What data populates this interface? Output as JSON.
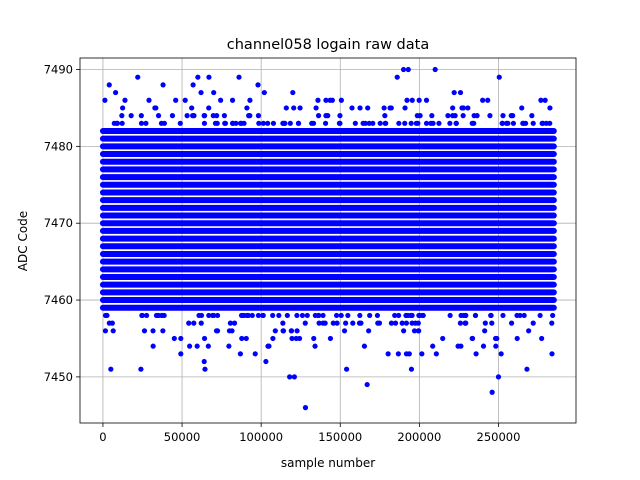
{
  "chart_data": {
    "type": "scatter",
    "title": "channel058 logain raw data",
    "xlabel": "sample number",
    "ylabel": "ADC Code",
    "xlim": [
      -14500,
      299000
    ],
    "ylim": [
      7444,
      7491.5
    ],
    "xticks": [
      0,
      50000,
      100000,
      150000,
      200000,
      250000
    ],
    "xtick_labels": [
      "0",
      "50000",
      "100000",
      "150000",
      "200000",
      "250000"
    ],
    "yticks": [
      7450,
      7460,
      7470,
      7480,
      7490
    ],
    "ytick_labels": [
      "7450",
      "7460",
      "7470",
      "7480",
      "7490"
    ],
    "grid": true,
    "legend": "none",
    "colors": {
      "marker": "#0000ff",
      "grid": "#b0b0b0",
      "axes": "#000000"
    },
    "series": [
      {
        "marker": "circle",
        "x_range": [
          0,
          285000
        ],
        "dense_band": [
          7457,
          7484
        ],
        "outliers": [
          [
            4000,
            7488
          ],
          [
            5000,
            7451
          ],
          [
            8000,
            7487
          ],
          [
            22000,
            7489
          ],
          [
            24000,
            7451
          ],
          [
            38000,
            7488
          ],
          [
            52000,
            7486
          ],
          [
            57000,
            7488
          ],
          [
            60000,
            7489
          ],
          [
            62000,
            7487
          ],
          [
            64000,
            7452
          ],
          [
            64500,
            7451
          ],
          [
            67000,
            7489
          ],
          [
            70000,
            7487
          ],
          [
            86000,
            7489
          ],
          [
            98000,
            7488
          ],
          [
            102000,
            7487
          ],
          [
            103000,
            7452
          ],
          [
            118000,
            7450
          ],
          [
            121000,
            7450
          ],
          [
            120000,
            7487
          ],
          [
            128000,
            7446
          ],
          [
            145000,
            7486
          ],
          [
            154000,
            7451
          ],
          [
            167000,
            7449
          ],
          [
            186000,
            7489
          ],
          [
            190000,
            7490
          ],
          [
            193000,
            7490
          ],
          [
            195000,
            7451
          ],
          [
            210000,
            7490
          ],
          [
            222000,
            7487
          ],
          [
            226000,
            7487
          ],
          [
            240000,
            7486
          ],
          [
            246000,
            7448
          ],
          [
            250000,
            7450
          ],
          [
            250500,
            7489
          ],
          [
            268000,
            7451
          ]
        ]
      }
    ]
  }
}
